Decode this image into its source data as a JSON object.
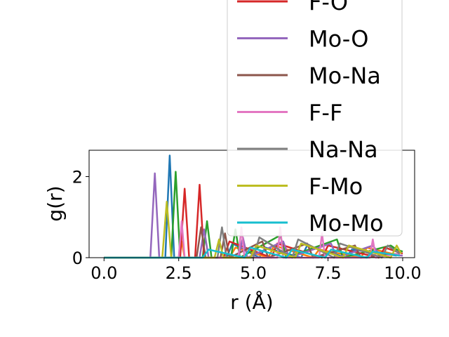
{
  "chart_data": {
    "type": "line",
    "xlabel": "r (Å)",
    "ylabel": "g(r)",
    "xlim": [
      -0.5,
      10.4
    ],
    "ylim": [
      0,
      2.65
    ],
    "xticks": [
      0.0,
      2.5,
      5.0,
      7.5,
      10.0
    ],
    "xtick_labels": [
      "0.0",
      "2.5",
      "5.0",
      "7.5",
      "10.0"
    ],
    "yticks": [
      0,
      2
    ],
    "ytick_labels": [
      "0",
      "2"
    ],
    "grid": false,
    "legend_position": "top-right, extending above the axes",
    "legend": [
      {
        "label": "F-O",
        "color": "#d62728"
      },
      {
        "label": "Mo-O",
        "color": "#9467bd"
      },
      {
        "label": "Mo-Na",
        "color": "#8c564b"
      },
      {
        "label": "F-F",
        "color": "#e377c2"
      },
      {
        "label": "Na-Na",
        "color": "#7f7f7f"
      },
      {
        "label": "F-Mo",
        "color": "#bcbd22"
      },
      {
        "label": "Mo-Mo",
        "color": "#17becf"
      }
    ],
    "series": [
      {
        "color": "#1f77b4",
        "x": [
          0.0,
          2.05,
          2.2,
          2.35,
          2.5,
          4.1,
          4.3,
          5.2,
          5.4,
          6.6,
          6.8,
          8.1,
          8.3,
          9.8
        ],
        "y": [
          0,
          0,
          2.52,
          0,
          0,
          0,
          0.35,
          0,
          0.25,
          0,
          0.3,
          0,
          0.2,
          0.05
        ]
      },
      {
        "color": "#ff7f0e",
        "x": [
          0.0,
          2.5,
          2.6,
          2.7,
          4.2,
          4.4,
          5.5,
          5.7,
          7.0,
          7.2,
          8.6,
          8.8,
          9.9
        ],
        "y": [
          0,
          0,
          0.4,
          0,
          0,
          0.25,
          0,
          0.3,
          0,
          0.2,
          0,
          0.25,
          0.05
        ]
      },
      {
        "color": "#2ca02c",
        "x": [
          0.0,
          2.25,
          2.4,
          2.55,
          3.3,
          3.45,
          3.6,
          4.25,
          4.4,
          4.55,
          5.9,
          6.1,
          7.8,
          8.0,
          9.6,
          9.8,
          10.0
        ],
        "y": [
          0,
          0,
          2.12,
          0,
          0,
          0.9,
          0,
          0,
          0.7,
          0,
          0.55,
          0,
          0.45,
          0,
          0.3,
          0.2,
          0.15
        ]
      },
      {
        "color": "#d62728",
        "x": [
          0.0,
          2.55,
          2.7,
          2.85,
          3.05,
          3.2,
          3.35,
          4.0,
          4.2,
          5.6,
          5.8,
          7.3,
          7.5,
          9.2,
          9.4,
          10.0
        ],
        "y": [
          0,
          0,
          1.7,
          0,
          0,
          1.8,
          0,
          0,
          0.4,
          0,
          0.35,
          0,
          0.3,
          0,
          0.25,
          0.1
        ]
      },
      {
        "color": "#9467bd",
        "x": [
          0.0,
          1.55,
          1.7,
          1.85,
          3.2,
          3.35,
          3.5,
          4.5,
          4.65,
          4.8,
          6.0,
          6.2,
          7.6,
          7.8,
          9.0,
          9.2,
          10.0
        ],
        "y": [
          0,
          0,
          2.08,
          0,
          0,
          0.7,
          0,
          0,
          0.5,
          0,
          0.4,
          0,
          0.35,
          0,
          0.3,
          0.1,
          0.05
        ]
      },
      {
        "color": "#8c564b",
        "x": [
          0.0,
          3.1,
          3.25,
          3.4,
          3.9,
          4.05,
          4.2,
          5.3,
          5.5,
          6.8,
          7.0,
          8.4,
          8.6,
          9.9
        ],
        "y": [
          0,
          0,
          0.75,
          0,
          0,
          0.6,
          0,
          0.4,
          0,
          0.35,
          0,
          0.3,
          0,
          0.1
        ]
      },
      {
        "color": "#e377c2",
        "x": [
          0.0,
          2.5,
          2.6,
          2.7,
          4.5,
          4.6,
          4.7,
          5.8,
          5.9,
          6.0,
          7.2,
          7.3,
          7.4,
          8.9,
          9.0,
          9.1,
          9.9
        ],
        "y": [
          0,
          0,
          0.9,
          0,
          0,
          0.75,
          0,
          0,
          0.75,
          0,
          0,
          0.6,
          0,
          0,
          0.45,
          0,
          0.1
        ]
      },
      {
        "color": "#7f7f7f",
        "x": [
          0.0,
          3.8,
          3.95,
          4.1,
          5.0,
          5.2,
          6.3,
          6.5,
          7.7,
          7.9,
          9.3,
          9.5,
          9.9
        ],
        "y": [
          0,
          0,
          0.75,
          0,
          0,
          0.5,
          0,
          0.45,
          0,
          0.35,
          0,
          0.3,
          0.1
        ]
      },
      {
        "color": "#bcbd22",
        "x": [
          0.0,
          1.95,
          2.1,
          2.25,
          3.7,
          3.85,
          4.0,
          4.9,
          5.1,
          6.4,
          6.6,
          8.0,
          8.2,
          9.6,
          9.8,
          9.95
        ],
        "y": [
          0,
          0,
          1.38,
          0,
          0,
          0.45,
          0,
          0,
          0.3,
          0,
          0.35,
          0,
          0.3,
          0,
          0.3,
          0.1
        ]
      },
      {
        "color": "#17becf",
        "x": [
          0.0,
          3.3,
          3.5,
          4.7,
          4.9,
          6.1,
          6.3,
          7.4,
          7.6,
          8.8,
          9.0,
          9.9
        ],
        "y": [
          0,
          0,
          0.2,
          0,
          0.25,
          0,
          0.2,
          0,
          0.2,
          0,
          0.15,
          0.05
        ]
      }
    ]
  }
}
